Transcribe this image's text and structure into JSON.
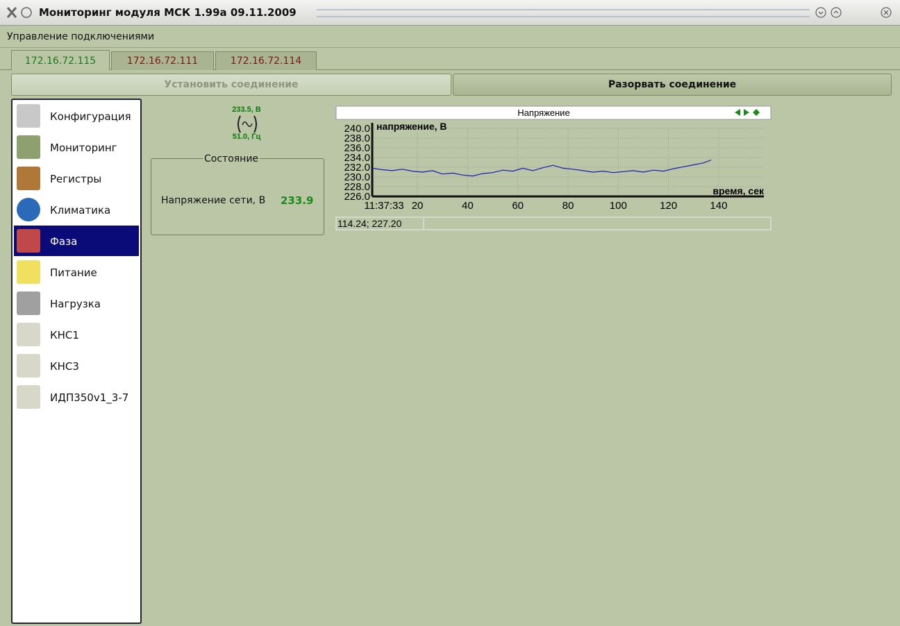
{
  "window": {
    "title": "Мониторинг модуля МСК 1.99a 09.11.2009"
  },
  "menu": [
    "Управление подключениями"
  ],
  "tabs": [
    "172.16.72.115",
    "172.16.72.111",
    "172.16.72.114"
  ],
  "buttons": {
    "connect": "Установить соединение",
    "disconnect": "Разорвать соединение"
  },
  "sidebar": {
    "items": [
      "Конфигурация",
      "Мониторинг",
      "Регистры",
      "Климатика",
      "Фаза",
      "Питание",
      "Нагрузка",
      "КНС1",
      "КНС3",
      "ИДП350v1_3-7"
    ],
    "selected": 4
  },
  "indicator": {
    "voltage": "233.5, В",
    "frequency": "51.0, Гц"
  },
  "status_box": {
    "title": "Состояние",
    "label": "Напряжение сети, В",
    "value": "233.9"
  },
  "chart_data": {
    "type": "line",
    "title": "Напряжение",
    "y_label": "напряжение, В",
    "x_label": "время, сек",
    "start_time": "11:37:33",
    "x": [
      2,
      6,
      10,
      14,
      18,
      22,
      26,
      30,
      34,
      38,
      42,
      46,
      50,
      54,
      58,
      62,
      66,
      70,
      74,
      78,
      82,
      86,
      90,
      94,
      98,
      102,
      106,
      110,
      114,
      118,
      122,
      126,
      130,
      134,
      137
    ],
    "series": [
      {
        "name": "Напряжение",
        "color": "#1a1ab4",
        "values": [
          231.8,
          231.5,
          231.3,
          231.6,
          231.2,
          231.0,
          231.3,
          230.6,
          230.8,
          230.4,
          230.2,
          230.7,
          230.9,
          231.4,
          231.2,
          231.8,
          231.3,
          231.9,
          232.4,
          231.8,
          231.6,
          231.3,
          231.0,
          231.2,
          230.9,
          231.1,
          231.3,
          231.0,
          231.4,
          231.2,
          231.7,
          232.1,
          232.5,
          232.9,
          233.5
        ]
      }
    ],
    "xlim": [
      2,
      158
    ],
    "ylim": [
      226,
      240
    ],
    "xticks": [
      20,
      40,
      60,
      80,
      100,
      120,
      140
    ],
    "yticks": [
      {
        "value": 240,
        "label": "240.0"
      },
      {
        "value": 238,
        "label": "238.0"
      },
      {
        "value": 236,
        "label": "236.0"
      },
      {
        "value": 234,
        "label": "234.0"
      },
      {
        "value": 232,
        "label": "232.0"
      },
      {
        "value": 230,
        "label": "230.0"
      },
      {
        "value": 228,
        "label": "228.0"
      },
      {
        "value": 226,
        "label": "226.0"
      }
    ],
    "grid": true,
    "cursor": "114.24; 227.20"
  }
}
